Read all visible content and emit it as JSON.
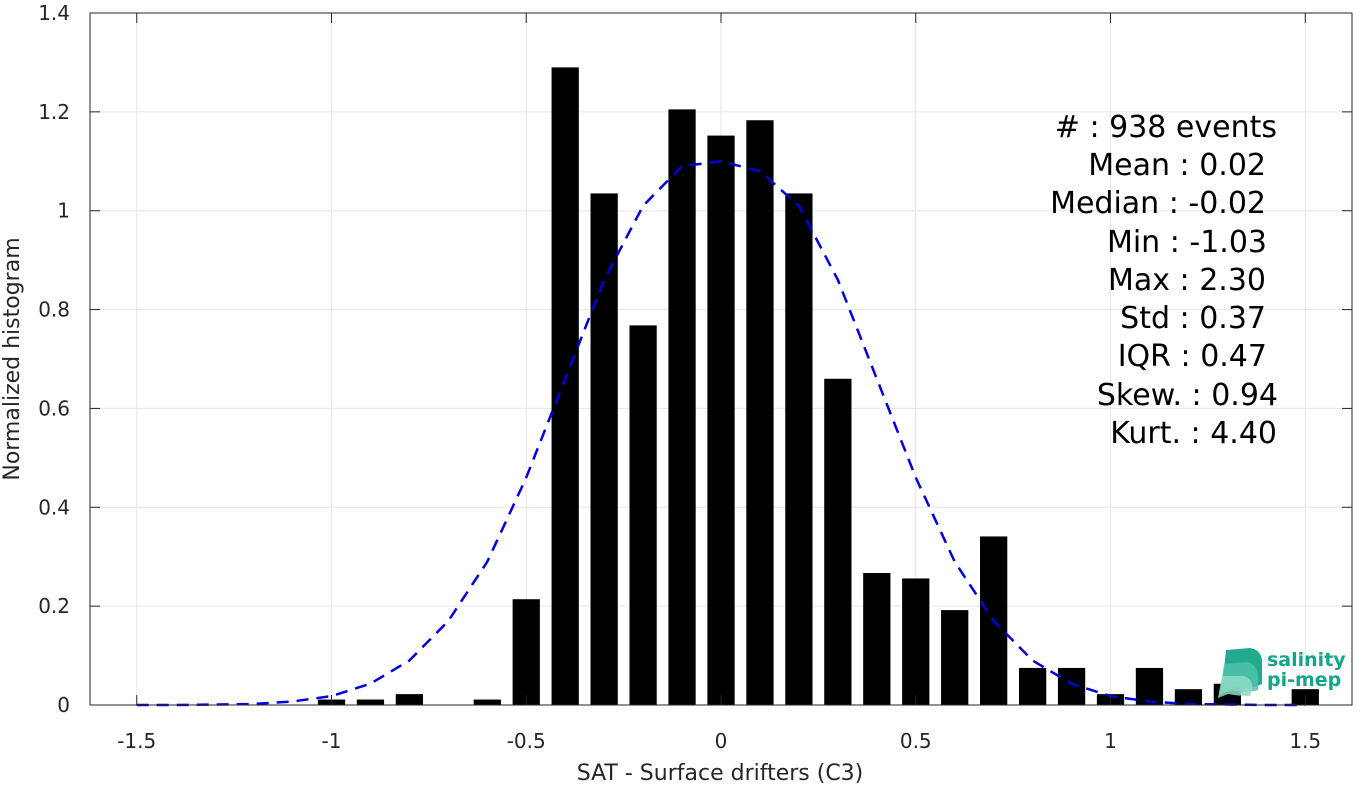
{
  "chart_data": {
    "type": "bar",
    "xlabel": "SAT - Surface drifters (C3)",
    "ylabel": "Normalized histogram",
    "xlim": [
      -1.62,
      1.62
    ],
    "ylim": [
      0,
      1.4
    ],
    "grid": true,
    "xticks": [
      -1.5,
      -1,
      -0.5,
      0,
      0.5,
      1,
      1.5
    ],
    "xtick_labels": [
      "-1.5",
      "-1",
      "-0.5",
      "0",
      "0.5",
      "1",
      "1.5"
    ],
    "yticks": [
      0,
      0.2,
      0.4,
      0.6,
      0.8,
      1,
      1.2,
      1.4
    ],
    "ytick_labels": [
      "0",
      "0.2",
      "0.4",
      "0.6",
      "0.8",
      "1",
      "1.2",
      "1.4"
    ],
    "bar_width": 0.07,
    "bars": [
      {
        "x": -1.0,
        "y": 0.011
      },
      {
        "x": -0.9,
        "y": 0.011
      },
      {
        "x": -0.8,
        "y": 0.022
      },
      {
        "x": -0.6,
        "y": 0.011
      },
      {
        "x": -0.5,
        "y": 0.214
      },
      {
        "x": -0.4,
        "y": 1.29
      },
      {
        "x": -0.3,
        "y": 1.035
      },
      {
        "x": -0.2,
        "y": 0.768
      },
      {
        "x": -0.1,
        "y": 1.205
      },
      {
        "x": 0.0,
        "y": 1.152
      },
      {
        "x": 0.1,
        "y": 1.183
      },
      {
        "x": 0.2,
        "y": 1.035
      },
      {
        "x": 0.3,
        "y": 0.66
      },
      {
        "x": 0.4,
        "y": 0.267
      },
      {
        "x": 0.5,
        "y": 0.256
      },
      {
        "x": 0.6,
        "y": 0.192
      },
      {
        "x": 0.7,
        "y": 0.341
      },
      {
        "x": 0.8,
        "y": 0.075
      },
      {
        "x": 0.9,
        "y": 0.075
      },
      {
        "x": 1.0,
        "y": 0.022
      },
      {
        "x": 1.1,
        "y": 0.075
      },
      {
        "x": 1.2,
        "y": 0.032
      },
      {
        "x": 1.3,
        "y": 0.043
      },
      {
        "x": 1.5,
        "y": 0.032
      }
    ],
    "bar_color": "#000000",
    "fit_curve": {
      "style": "dashed",
      "color": "#0000e0",
      "x": [
        -1.5,
        -1.4,
        -1.3,
        -1.2,
        -1.1,
        -1.0,
        -0.9,
        -0.8,
        -0.7,
        -0.6,
        -0.5,
        -0.4,
        -0.3,
        -0.2,
        -0.1,
        0.0,
        0.1,
        0.2,
        0.3,
        0.4,
        0.5,
        0.6,
        0.7,
        0.8,
        0.9,
        1.0,
        1.1,
        1.2,
        1.3,
        1.4,
        1.5
      ],
      "y": [
        0.0,
        0.0,
        0.001,
        0.002,
        0.007,
        0.018,
        0.043,
        0.09,
        0.17,
        0.29,
        0.46,
        0.66,
        0.86,
        1.01,
        1.09,
        1.1,
        1.08,
        1.01,
        0.86,
        0.66,
        0.46,
        0.29,
        0.17,
        0.09,
        0.043,
        0.018,
        0.007,
        0.002,
        0.001,
        0.0,
        0.0
      ]
    },
    "annotations": [
      "#  : 938 events",
      "Mean : 0.02",
      "Median : -0.02",
      "Min : -1.03",
      "Max : 2.30",
      "Std : 0.37",
      "IQR : 0.47",
      "Skew. : 0.94",
      "Kurt. : 4.40"
    ]
  },
  "logo": {
    "line1": "salinity",
    "line2": "pi-mep",
    "color": "#16a58a"
  }
}
